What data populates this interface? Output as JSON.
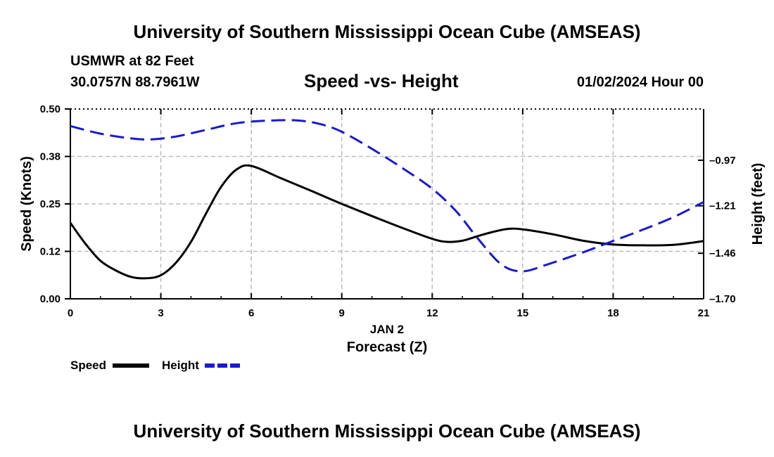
{
  "page": {
    "title": "University of Southern Mississippi Ocean Cube (AMSEAS)",
    "station": "USMWR at 82 Feet",
    "coords": "30.0757N  88.7961W",
    "subtitle": "Speed -vs- Height",
    "datetime": "01/02/2024 Hour 00",
    "bottom_title": "University of Southern Mississippi Ocean Cube (AMSEAS)"
  },
  "colors": {
    "speed": "#000000",
    "height": "#1a1acc",
    "grid": "#bbbbbb"
  },
  "chart_data": {
    "type": "line",
    "title": "Speed -vs- Height",
    "xlabel": "Forecast (Z)",
    "xlabel_date": "JAN 2",
    "ylabel": "Speed (Knots)",
    "y2label": "Height (feet)",
    "xlim": [
      0,
      21
    ],
    "ylim": [
      0,
      0.5
    ],
    "y2lim": [
      -1.7,
      -0.7
    ],
    "x_ticks": [
      0,
      3,
      6,
      9,
      12,
      15,
      18,
      21
    ],
    "y_ticks": [
      {
        "v": 0.0,
        "label": "0.00"
      },
      {
        "v": 0.125,
        "label": "0.12"
      },
      {
        "v": 0.25,
        "label": "0.25"
      },
      {
        "v": 0.375,
        "label": "0.38"
      },
      {
        "v": 0.5,
        "label": "0.50"
      }
    ],
    "y2_ticks": [
      {
        "v": -0.97,
        "label": "-0.97"
      },
      {
        "v": -1.21,
        "label": "-1.21"
      },
      {
        "v": -1.46,
        "label": "-1.46"
      },
      {
        "v": -1.7,
        "label": "-1.70"
      }
    ],
    "grid": true,
    "series": [
      {
        "name": "Speed",
        "axis": "left",
        "style": "solid",
        "x": [
          0,
          0.5,
          1,
          1.5,
          2,
          2.5,
          3,
          3.5,
          4,
          4.5,
          5,
          5.5,
          6,
          7,
          8,
          9,
          10,
          11,
          12,
          12.5,
          13,
          13.5,
          14,
          14.5,
          15,
          16,
          17,
          18,
          19,
          20,
          21
        ],
        "values": [
          0.2,
          0.145,
          0.1,
          0.075,
          0.058,
          0.054,
          0.062,
          0.095,
          0.15,
          0.225,
          0.295,
          0.34,
          0.35,
          0.317,
          0.284,
          0.25,
          0.218,
          0.187,
          0.158,
          0.15,
          0.153,
          0.165,
          0.176,
          0.184,
          0.183,
          0.17,
          0.153,
          0.143,
          0.141,
          0.142,
          0.152
        ]
      },
      {
        "name": "Height",
        "axis": "right",
        "style": "dashed",
        "x": [
          0,
          1,
          2,
          2.7,
          3.5,
          4.5,
          5.5,
          6.5,
          7.5,
          8.3,
          9,
          10,
          11,
          12,
          12.8,
          13.5,
          14.3,
          15,
          15.8,
          17,
          18,
          19,
          20,
          21
        ],
        "values": [
          -0.79,
          -0.83,
          -0.855,
          -0.86,
          -0.845,
          -0.81,
          -0.775,
          -0.762,
          -0.76,
          -0.78,
          -0.82,
          -0.91,
          -1.01,
          -1.12,
          -1.24,
          -1.38,
          -1.52,
          -1.555,
          -1.52,
          -1.455,
          -1.395,
          -1.335,
          -1.27,
          -1.19
        ]
      }
    ],
    "legend": [
      {
        "label": "Speed",
        "style": "solid"
      },
      {
        "label": "Height",
        "style": "dashed"
      }
    ]
  }
}
